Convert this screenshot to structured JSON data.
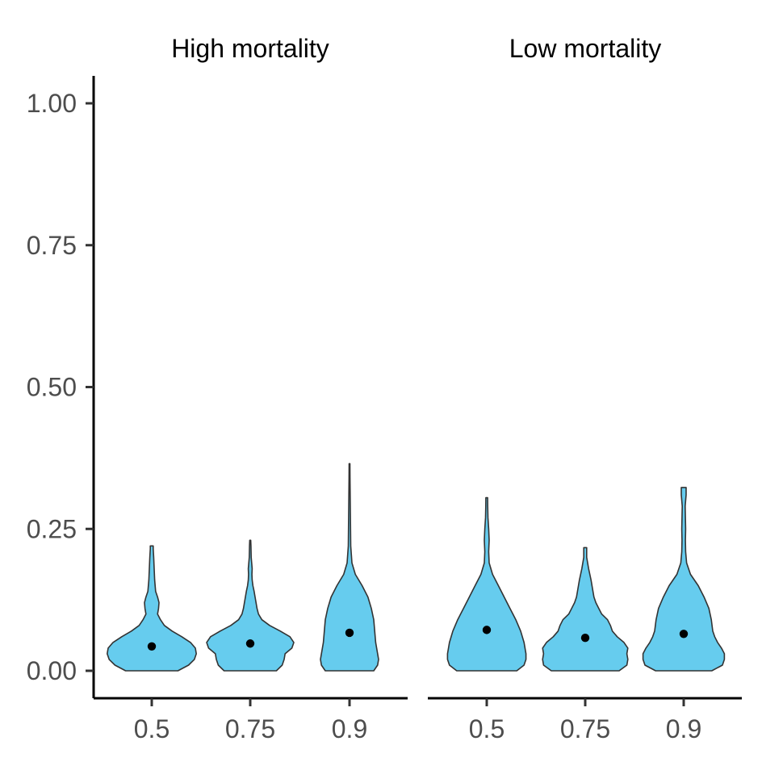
{
  "colors": {
    "violin_fill": "#66CCEE",
    "violin_stroke": "#333333",
    "point": "#000000"
  },
  "chart_data": {
    "type": "violin",
    "categories": [
      "0.5",
      "0.75",
      "0.9"
    ],
    "ylim": [
      -0.05,
      1.05
    ],
    "yticks": [
      0.0,
      0.25,
      0.5,
      0.75,
      1.0
    ],
    "ytick_labels": [
      "0.00",
      "0.25",
      "0.50",
      "0.75",
      "1.00"
    ],
    "xlabel": "",
    "ylabel": "",
    "grid": false,
    "facets": [
      {
        "title": "High mortality",
        "violins": [
          {
            "category": "0.5",
            "min": 0.0,
            "max": 0.22,
            "point": 0.043,
            "profile": [
              [
                0.0,
                0.54
              ],
              [
                0.01,
                0.76
              ],
              [
                0.02,
                0.88
              ],
              [
                0.03,
                0.92
              ],
              [
                0.04,
                0.9
              ],
              [
                0.05,
                0.8
              ],
              [
                0.06,
                0.62
              ],
              [
                0.07,
                0.42
              ],
              [
                0.08,
                0.26
              ],
              [
                0.09,
                0.18
              ],
              [
                0.1,
                0.12
              ],
              [
                0.11,
                0.14
              ],
              [
                0.12,
                0.15
              ],
              [
                0.13,
                0.12
              ],
              [
                0.14,
                0.08
              ],
              [
                0.16,
                0.06
              ],
              [
                0.18,
                0.05
              ],
              [
                0.2,
                0.04
              ],
              [
                0.215,
                0.03
              ],
              [
                0.22,
                0.03
              ]
            ]
          },
          {
            "category": "0.75",
            "min": 0.0,
            "max": 0.23,
            "point": 0.048,
            "profile": [
              [
                0.0,
                0.54
              ],
              [
                0.01,
                0.66
              ],
              [
                0.02,
                0.7
              ],
              [
                0.03,
                0.72
              ],
              [
                0.04,
                0.86
              ],
              [
                0.05,
                0.9
              ],
              [
                0.06,
                0.82
              ],
              [
                0.07,
                0.62
              ],
              [
                0.08,
                0.4
              ],
              [
                0.09,
                0.24
              ],
              [
                0.1,
                0.17
              ],
              [
                0.11,
                0.14
              ],
              [
                0.12,
                0.12
              ],
              [
                0.13,
                0.1
              ],
              [
                0.14,
                0.08
              ],
              [
                0.15,
                0.055
              ],
              [
                0.16,
                0.04
              ],
              [
                0.17,
                0.035
              ],
              [
                0.18,
                0.04
              ],
              [
                0.19,
                0.03
              ],
              [
                0.2,
                0.02
              ],
              [
                0.22,
                0.015
              ],
              [
                0.23,
                0.01
              ]
            ]
          },
          {
            "category": "0.9",
            "min": 0.0,
            "max": 0.365,
            "point": 0.067,
            "profile": [
              [
                0.0,
                0.5
              ],
              [
                0.01,
                0.58
              ],
              [
                0.02,
                0.6
              ],
              [
                0.03,
                0.58
              ],
              [
                0.05,
                0.54
              ],
              [
                0.07,
                0.52
              ],
              [
                0.09,
                0.5
              ],
              [
                0.11,
                0.45
              ],
              [
                0.13,
                0.38
              ],
              [
                0.15,
                0.26
              ],
              [
                0.17,
                0.12
              ],
              [
                0.19,
                0.05
              ],
              [
                0.22,
                0.025
              ],
              [
                0.26,
                0.02
              ],
              [
                0.3,
                0.015
              ],
              [
                0.34,
                0.01
              ],
              [
                0.365,
                0.008
              ]
            ]
          }
        ]
      },
      {
        "title": "Low mortality",
        "violins": [
          {
            "category": "0.5",
            "min": 0.0,
            "max": 0.305,
            "point": 0.072,
            "profile": [
              [
                0.0,
                0.62
              ],
              [
                0.01,
                0.77
              ],
              [
                0.02,
                0.81
              ],
              [
                0.03,
                0.81
              ],
              [
                0.05,
                0.77
              ],
              [
                0.07,
                0.7
              ],
              [
                0.09,
                0.6
              ],
              [
                0.11,
                0.48
              ],
              [
                0.13,
                0.36
              ],
              [
                0.15,
                0.24
              ],
              [
                0.17,
                0.12
              ],
              [
                0.19,
                0.05
              ],
              [
                0.21,
                0.04
              ],
              [
                0.23,
                0.05
              ],
              [
                0.25,
                0.04
              ],
              [
                0.27,
                0.025
              ],
              [
                0.29,
                0.02
              ],
              [
                0.305,
                0.018
              ]
            ]
          },
          {
            "category": "0.75",
            "min": 0.0,
            "max": 0.217,
            "point": 0.058,
            "profile": [
              [
                0.0,
                0.7
              ],
              [
                0.01,
                0.86
              ],
              [
                0.02,
                0.88
              ],
              [
                0.03,
                0.86
              ],
              [
                0.04,
                0.88
              ],
              [
                0.05,
                0.8
              ],
              [
                0.06,
                0.66
              ],
              [
                0.07,
                0.56
              ],
              [
                0.08,
                0.52
              ],
              [
                0.09,
                0.46
              ],
              [
                0.1,
                0.34
              ],
              [
                0.11,
                0.28
              ],
              [
                0.12,
                0.22
              ],
              [
                0.13,
                0.18
              ],
              [
                0.14,
                0.16
              ],
              [
                0.16,
                0.12
              ],
              [
                0.18,
                0.07
              ],
              [
                0.2,
                0.03
              ],
              [
                0.217,
                0.03
              ]
            ]
          },
          {
            "category": "0.9",
            "min": 0.0,
            "max": 0.323,
            "point": 0.065,
            "profile": [
              [
                0.0,
                0.58
              ],
              [
                0.01,
                0.8
              ],
              [
                0.02,
                0.84
              ],
              [
                0.03,
                0.84
              ],
              [
                0.04,
                0.78
              ],
              [
                0.05,
                0.7
              ],
              [
                0.06,
                0.64
              ],
              [
                0.07,
                0.6
              ],
              [
                0.09,
                0.57
              ],
              [
                0.11,
                0.52
              ],
              [
                0.13,
                0.42
              ],
              [
                0.15,
                0.3
              ],
              [
                0.17,
                0.14
              ],
              [
                0.19,
                0.06
              ],
              [
                0.21,
                0.04
              ],
              [
                0.23,
                0.035
              ],
              [
                0.25,
                0.04
              ],
              [
                0.27,
                0.035
              ],
              [
                0.29,
                0.03
              ],
              [
                0.31,
                0.05
              ],
              [
                0.323,
                0.05
              ]
            ]
          }
        ]
      }
    ]
  }
}
